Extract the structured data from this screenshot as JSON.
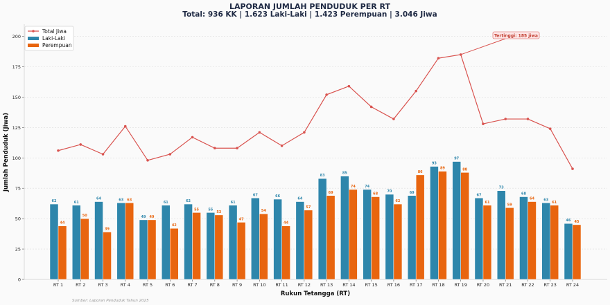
{
  "chart_data": {
    "type": "bar",
    "title": "LAPORAN JUMLAH PENDUDUK PER RT",
    "subtitle": "Total: 936 KK | 1.623 Laki-Laki | 1.423 Perempuan | 3.046 Jiwa",
    "xlabel": "Rukun Tetangga (RT)",
    "ylabel": "Jumlah Penduduk (Jiwa)",
    "ylim": [
      0,
      210
    ],
    "yticks": [
      0,
      25,
      50,
      75,
      100,
      125,
      150,
      175,
      200
    ],
    "grid": true,
    "legend_position": "top-left",
    "categories": [
      "RT 1",
      "RT 2",
      "RT 3",
      "RT 4",
      "RT 5",
      "RT 6",
      "RT 7",
      "RT 8",
      "RT 9",
      "RT 10",
      "RT 11",
      "RT 12",
      "RT 13",
      "RT 14",
      "RT 15",
      "RT 16",
      "RT 17",
      "RT 18",
      "RT 19",
      "RT 20",
      "RT 21",
      "RT 22",
      "RT 23",
      "RT 24"
    ],
    "series": [
      {
        "name": "Total Jiwa",
        "type": "line",
        "color": "#d9534f",
        "values": [
          106,
          111,
          103,
          126,
          98,
          103,
          117,
          108,
          108,
          121,
          110,
          121,
          152,
          159,
          142,
          132,
          155,
          182,
          185,
          128,
          132,
          132,
          124,
          91
        ]
      },
      {
        "name": "Laki-Laki",
        "type": "bar",
        "color": "#2e86ab",
        "values": [
          62,
          61,
          64,
          63,
          49,
          61,
          62,
          55,
          61,
          67,
          66,
          64,
          83,
          85,
          74,
          70,
          69,
          93,
          97,
          67,
          73,
          68,
          63,
          46
        ]
      },
      {
        "name": "Perempuan",
        "type": "bar",
        "color": "#e8650f",
        "values": [
          44,
          50,
          39,
          63,
          49,
          42,
          55,
          53,
          47,
          54,
          44,
          57,
          69,
          74,
          68,
          62,
          86,
          89,
          88,
          61,
          59,
          64,
          61,
          45
        ]
      }
    ],
    "annotation": {
      "text": "Tertinggi: 185 jiwa",
      "category": "RT 19",
      "value": 185
    },
    "source": "Sumber: Laporan Penduduk Tahun 2025"
  }
}
